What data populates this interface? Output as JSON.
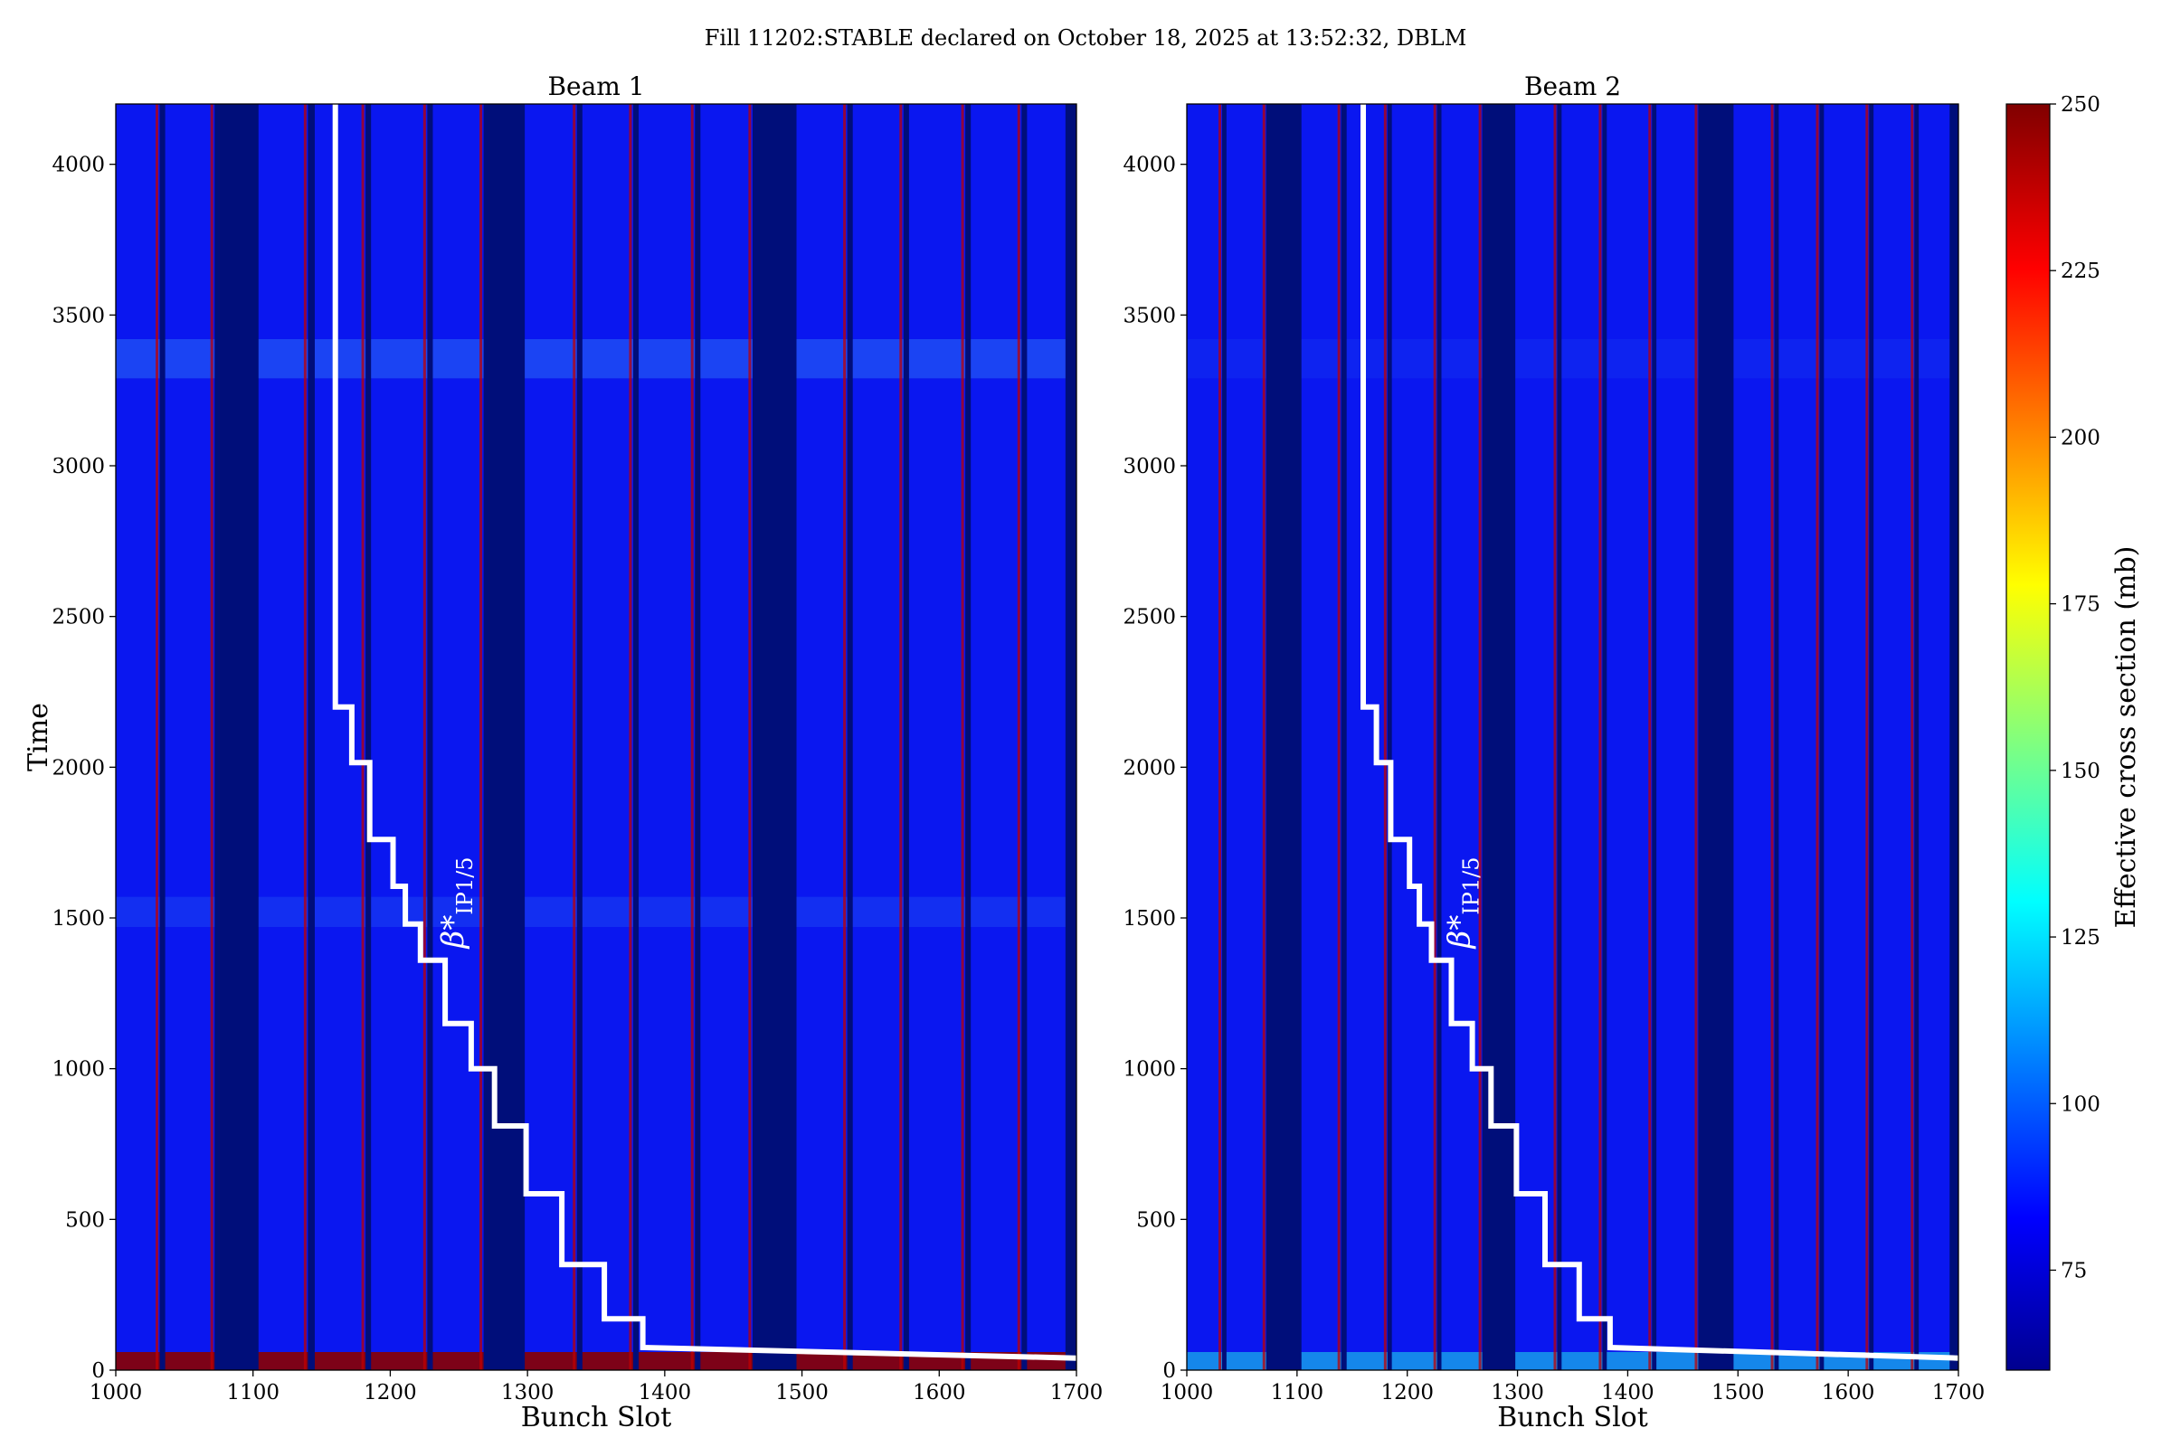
{
  "suptitle": "Fill 11202:STABLE declared on October 18, 2025 at 13:52:32, DBLM",
  "xlabel": "Bunch Slot",
  "ylabel": "Time",
  "annotation": "β*",
  "annotation_sub": "IP1/5",
  "colorbar": {
    "label": "Effective cross section (mb)",
    "range": [
      60,
      250
    ],
    "ticks": [
      75,
      100,
      125,
      150,
      175,
      200,
      225,
      250
    ],
    "colormap": "jet"
  },
  "chart_data": [
    {
      "type": "heatmap",
      "title": "Beam 1",
      "xlim": [
        1000,
        1700
      ],
      "ylim": [
        0,
        4200
      ],
      "xticks": [
        1000,
        1100,
        1200,
        1300,
        1400,
        1500,
        1600,
        1700
      ],
      "yticks": [
        0,
        500,
        1000,
        1500,
        2000,
        2500,
        3000,
        3500,
        4000
      ],
      "empty_slot_ranges": [
        [
          1032,
          1036
        ],
        [
          1072,
          1104
        ],
        [
          1140,
          1145
        ],
        [
          1182,
          1186
        ],
        [
          1227,
          1231
        ],
        [
          1268,
          1298
        ],
        [
          1336,
          1340
        ],
        [
          1377,
          1381
        ],
        [
          1422,
          1426
        ],
        [
          1464,
          1496
        ],
        [
          1533,
          1537
        ],
        [
          1574,
          1578
        ],
        [
          1619,
          1623
        ],
        [
          1660,
          1664
        ],
        [
          1692,
          1700
        ]
      ],
      "bright_train_edges": [
        1030,
        1070,
        1138,
        1180,
        1225,
        1266,
        1334,
        1375,
        1420,
        1462,
        1531,
        1572,
        1617,
        1658
      ],
      "high_loss_initial_period": [
        0,
        60
      ],
      "beta_star_line": {
        "x": [
          1160,
          1160,
          1172,
          1172,
          1185,
          1185,
          1202,
          1202,
          1211,
          1211,
          1222,
          1222,
          1240,
          1240,
          1259,
          1259,
          1276,
          1276,
          1299,
          1299,
          1325,
          1325,
          1356,
          1356,
          1384,
          1384,
          1700
        ],
        "y": [
          4200,
          2200,
          2200,
          2015,
          2015,
          1760,
          1760,
          1605,
          1605,
          1480,
          1480,
          1360,
          1360,
          1150,
          1150,
          1000,
          1000,
          810,
          810,
          585,
          585,
          350,
          350,
          170,
          170,
          75,
          40
        ]
      }
    },
    {
      "type": "heatmap",
      "title": "Beam 2",
      "xlim": [
        1000,
        1700
      ],
      "ylim": [
        0,
        4200
      ],
      "xticks": [
        1000,
        1100,
        1200,
        1300,
        1400,
        1500,
        1600,
        1700
      ],
      "yticks": [
        0,
        500,
        1000,
        1500,
        2000,
        2500,
        3000,
        3500,
        4000
      ],
      "empty_slot_ranges": [
        [
          1032,
          1036
        ],
        [
          1072,
          1104
        ],
        [
          1140,
          1145
        ],
        [
          1182,
          1186
        ],
        [
          1227,
          1231
        ],
        [
          1268,
          1298
        ],
        [
          1336,
          1340
        ],
        [
          1377,
          1381
        ],
        [
          1422,
          1426
        ],
        [
          1464,
          1496
        ],
        [
          1533,
          1537
        ],
        [
          1574,
          1578
        ],
        [
          1619,
          1623
        ],
        [
          1660,
          1664
        ],
        [
          1692,
          1700
        ]
      ],
      "bright_train_edges": [
        1030,
        1070,
        1138,
        1180,
        1225,
        1266,
        1334,
        1375,
        1420,
        1462,
        1531,
        1572,
        1617,
        1658
      ],
      "high_loss_initial_period": [
        0,
        60
      ],
      "beta_star_line": {
        "x": [
          1160,
          1160,
          1172,
          1172,
          1185,
          1185,
          1202,
          1202,
          1211,
          1211,
          1222,
          1222,
          1240,
          1240,
          1259,
          1259,
          1276,
          1276,
          1299,
          1299,
          1325,
          1325,
          1356,
          1356,
          1384,
          1384,
          1700
        ],
        "y": [
          4200,
          2200,
          2200,
          2015,
          2015,
          1760,
          1760,
          1605,
          1605,
          1480,
          1480,
          1360,
          1360,
          1150,
          1150,
          1000,
          1000,
          810,
          810,
          585,
          585,
          350,
          350,
          170,
          170,
          75,
          40
        ]
      }
    }
  ]
}
